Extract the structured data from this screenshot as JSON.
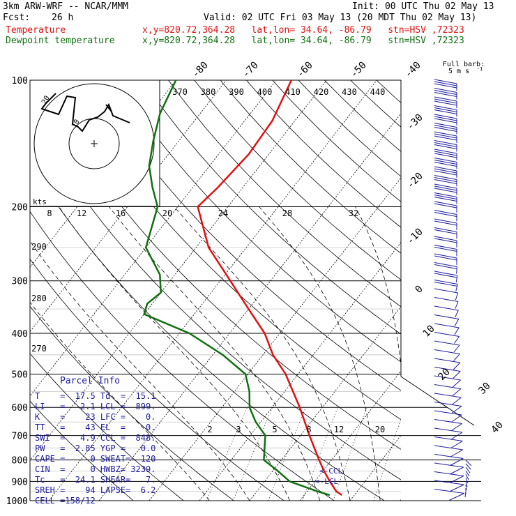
{
  "header": {
    "model": "3km ARW-WRF -- NCAR/MMM",
    "init": "Init: 00 UTC Thu 02 May 13",
    "fcst_label": "Fcst:",
    "fcst_value": "26 h",
    "valid": "Valid: 02 UTC Fri 03 May 13 (20 MDT Thu 02 May 13)",
    "temp_label": "Temperature",
    "temp_loc": "x,y=820.72,364.28   lat,lon= 34.64, -86.79   stn=HSV ,72323",
    "dew_label": "Dewpoint temperature",
    "dew_loc": "x,y=820.72,364.28   lat,lon= 34.64, -86.79   stn=HSV ,72323"
  },
  "colors": {
    "temperature": "#e01010",
    "dewpoint": "#107010",
    "wind": "#1a1aa0",
    "grid": "#000000"
  },
  "chart_data": {
    "type": "line",
    "series": [
      {
        "name": "Temperature",
        "points": [
          {
            "p": 970,
            "t": 17.5
          },
          {
            "p": 950,
            "t": 15.8
          },
          {
            "p": 900,
            "t": 13.0
          },
          {
            "p": 850,
            "t": 10.2
          },
          {
            "p": 800,
            "t": 7.5
          },
          {
            "p": 700,
            "t": 1.8
          },
          {
            "p": 600,
            "t": -4.5
          },
          {
            "p": 500,
            "t": -12.5
          },
          {
            "p": 450,
            "t": -18.0
          },
          {
            "p": 400,
            "t": -23.0
          },
          {
            "p": 350,
            "t": -30.0
          },
          {
            "p": 300,
            "t": -38.0
          },
          {
            "p": 250,
            "t": -47.5
          },
          {
            "p": 200,
            "t": -56.0
          },
          {
            "p": 180,
            "t": -55.0
          },
          {
            "p": 150,
            "t": -54.0
          },
          {
            "p": 125,
            "t": -54.5
          },
          {
            "p": 100,
            "t": -57.0
          }
        ]
      },
      {
        "name": "Dewpoint temperature",
        "points": [
          {
            "p": 970,
            "t": 15.1
          },
          {
            "p": 950,
            "t": 12.0
          },
          {
            "p": 900,
            "t": 5.0
          },
          {
            "p": 850,
            "t": 1.0
          },
          {
            "p": 800,
            "t": -3.5
          },
          {
            "p": 700,
            "t": -7.0
          },
          {
            "p": 650,
            "t": -11.0
          },
          {
            "p": 600,
            "t": -14.5
          },
          {
            "p": 550,
            "t": -17.0
          },
          {
            "p": 500,
            "t": -20.5
          },
          {
            "p": 450,
            "t": -28.0
          },
          {
            "p": 400,
            "t": -38.0
          },
          {
            "p": 360,
            "t": -50.0
          },
          {
            "p": 340,
            "t": -51.0
          },
          {
            "p": 320,
            "t": -50.0
          },
          {
            "p": 290,
            "t": -53.0
          },
          {
            "p": 250,
            "t": -60.0
          },
          {
            "p": 200,
            "t": -64.0
          },
          {
            "p": 180,
            "t": -68.0
          },
          {
            "p": 160,
            "t": -72.0
          },
          {
            "p": 140,
            "t": -75.0
          },
          {
            "p": 120,
            "t": -78.0
          },
          {
            "p": 100,
            "t": -80.0
          }
        ]
      }
    ],
    "pressure_levels": [
      100,
      200,
      300,
      400,
      500,
      600,
      700,
      800,
      900,
      1000
    ],
    "ylim": [
      1000,
      100
    ],
    "top_temp_labels": [
      "-80",
      "-70",
      "-60",
      "-50",
      "-40"
    ],
    "right_temp_labels": [
      "-30",
      "-20",
      "-10",
      "0",
      "10",
      "20",
      "30",
      "40"
    ],
    "theta_labels": [
      "370",
      "380",
      "390",
      "400",
      "410",
      "420",
      "430",
      "440"
    ],
    "left_theta_labels": [
      "290",
      "280",
      "270"
    ],
    "hodo_speed_labels": [
      "8",
      "12",
      "16",
      "20",
      "24",
      "28",
      "32"
    ],
    "mixing_ratio_labels": [
      "2",
      "3",
      "5",
      "8",
      "12",
      "20"
    ],
    "ccl_label": "<-CCL",
    "lcl_label": "<-LCL",
    "hodograph": {
      "units": "kts",
      "ring_labels": [
        "20",
        "10"
      ]
    },
    "barb_legend": "Full barb:",
    "barb_legend_units": "5 m s",
    "barb_legend_exp": "-1",
    "parcel_info": {
      "title": "Parcel Info",
      "rows": [
        {
          "l1": "T    =",
          "v1": "17.5",
          "l2": "Td  =",
          "v2": "15.1"
        },
        {
          "l1": "LI   =",
          "v1": "2.1",
          "l2": "LCL =",
          "v2": "899."
        },
        {
          "l1": "K    =",
          "v1": "23",
          "l2": "LFC =",
          "v2": "0."
        },
        {
          "l1": "TT   =",
          "v1": "43",
          "l2": "EL  =",
          "v2": "0."
        },
        {
          "l1": "SWI  =",
          "v1": "4.9",
          "l2": "CCL =",
          "v2": "848."
        },
        {
          "l1": "PW   =",
          "v1": "2.85",
          "l2": "YGP =",
          "v2": "0.0"
        },
        {
          "l1": "CAPE =",
          "v1": "0",
          "l2": "SWEAT=",
          "v2": "120"
        },
        {
          "l1": "CIN  =",
          "v1": "0",
          "l2": "HWBZ=",
          "v2": "3239."
        },
        {
          "l1": "Tc   =",
          "v1": "24.1",
          "l2": "SHEAR=",
          "v2": "7."
        },
        {
          "l1": "SREH =",
          "v1": "94",
          "l2": "LAPSE=",
          "v2": "6.2"
        },
        {
          "l1": "CELL =",
          "v1": "158/12",
          "l2": "",
          "v2": ""
        }
      ]
    }
  }
}
